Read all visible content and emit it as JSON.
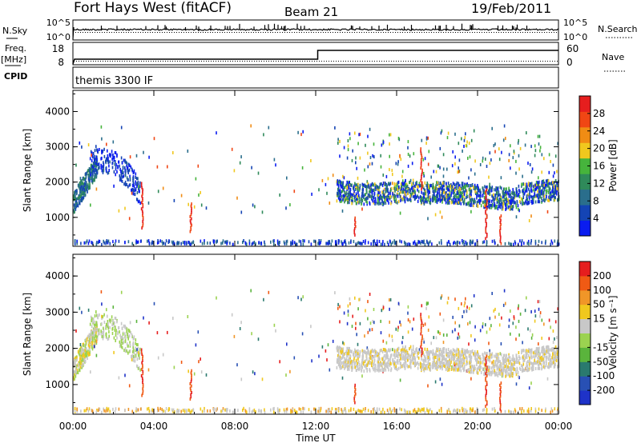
{
  "header": {
    "station": "Fort Hays West (fitACF)",
    "beam": "Beam 21",
    "date": "19/Feb/2011"
  },
  "summary": {
    "nsky_label": "N.Sky",
    "nsky_ticks": [
      "10^5",
      "10^0"
    ],
    "nsearch_label": "N.Search",
    "nsearch_ticks": [
      "10^5",
      "10^0"
    ],
    "freq_label": "Freq.",
    "freq_unit": "[MHz]",
    "freq_ticks": [
      "18",
      "8"
    ],
    "nave_label": "Nave",
    "nave_ticks": [
      "60",
      "0"
    ],
    "cpid_label": "CPID",
    "cpid_text": "themis 3300 IF"
  },
  "colors": {
    "power": [
      "#0a1cf0",
      "#1444b4",
      "#2a6e8c",
      "#2f8a5a",
      "#46b43c",
      "#f0c81e",
      "#f08c14",
      "#f04614",
      "#e61e1e"
    ],
    "velocity": [
      "#1e32c8",
      "#2850b4",
      "#2a7a6e",
      "#5ab43c",
      "#9bd250",
      "#c8c8c8",
      "#f0c81e",
      "#f09628",
      "#f05a14",
      "#e61e1e"
    ]
  },
  "chart_data": [
    {
      "type": "heatmap",
      "panel": "power",
      "ylabel": "Slant Range [km]",
      "yticks": [
        1000,
        2000,
        3000,
        4000
      ],
      "ylim": [
        180,
        4600
      ],
      "xlim_hours": [
        0,
        24
      ],
      "colorbar": {
        "label": "Power [dB]",
        "ticks": [
          "4",
          "8",
          "12",
          "16",
          "20",
          "24",
          "28"
        ],
        "range": [
          0,
          32
        ]
      }
    },
    {
      "type": "heatmap",
      "panel": "velocity",
      "ylabel": "Slant Range [km]",
      "yticks": [
        1000,
        2000,
        3000,
        4000
      ],
      "ylim": [
        180,
        4600
      ],
      "xlim_hours": [
        0,
        24
      ],
      "colorbar": {
        "label": "Velocity [m s⁻¹]",
        "ticks": [
          "200",
          "100",
          "50",
          "15",
          "-15",
          "-50",
          "-100",
          "-200"
        ]
      }
    }
  ],
  "xaxis": {
    "label": "Time UT",
    "ticks": [
      "00:00",
      "04:00",
      "08:00",
      "12:00",
      "16:00",
      "20:00",
      "00:00"
    ]
  }
}
